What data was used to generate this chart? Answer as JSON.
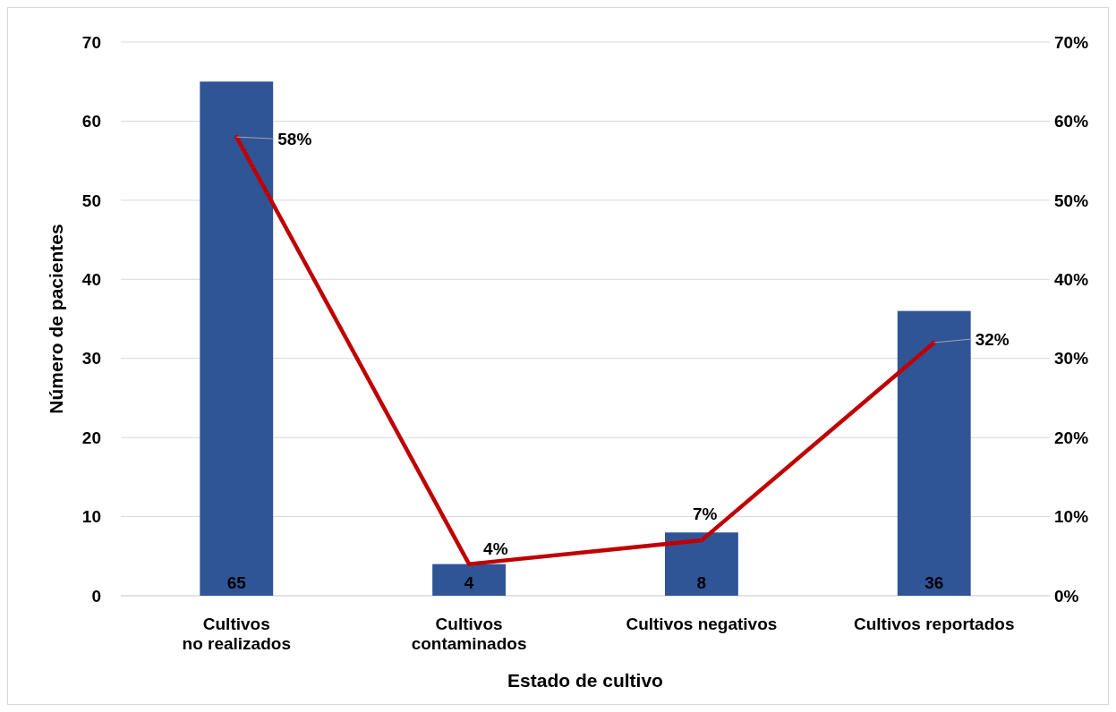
{
  "chart_data": {
    "type": "bar",
    "xlabel": "Estado de cultivo",
    "ylabel": "Número de pacientes",
    "categories": [
      "Cultivos no realizados",
      "Cultivos contaminados",
      "Cultivos negativos",
      "Cultivos reportados"
    ],
    "series": [
      {
        "type": "bar",
        "color": "#2f5597",
        "values": [
          65,
          4,
          8,
          36
        ],
        "value_labels": [
          "65",
          "4",
          "8",
          "36"
        ]
      },
      {
        "type": "line",
        "axis": "y2",
        "color": "#c00000",
        "values": [
          58,
          4,
          7,
          32
        ],
        "value_labels": [
          "58%",
          "4%",
          "7%",
          "32%"
        ]
      }
    ],
    "ylim": [
      0,
      70
    ],
    "yticks": [
      0,
      10,
      20,
      30,
      40,
      50,
      60,
      70
    ],
    "y2lim": [
      0,
      70
    ],
    "y2ticks": [
      {
        "value": 0,
        "label": "0%"
      },
      {
        "value": 10,
        "label": "10%"
      },
      {
        "value": 20,
        "label": "20%"
      },
      {
        "value": 30,
        "label": "30%"
      },
      {
        "value": 40,
        "label": "40%"
      },
      {
        "value": 50,
        "label": "50%"
      },
      {
        "value": 60,
        "label": "60%"
      },
      {
        "value": 70,
        "label": "70%"
      }
    ],
    "grid": "y",
    "legend": false,
    "marker": "none",
    "line_style": "solid"
  }
}
